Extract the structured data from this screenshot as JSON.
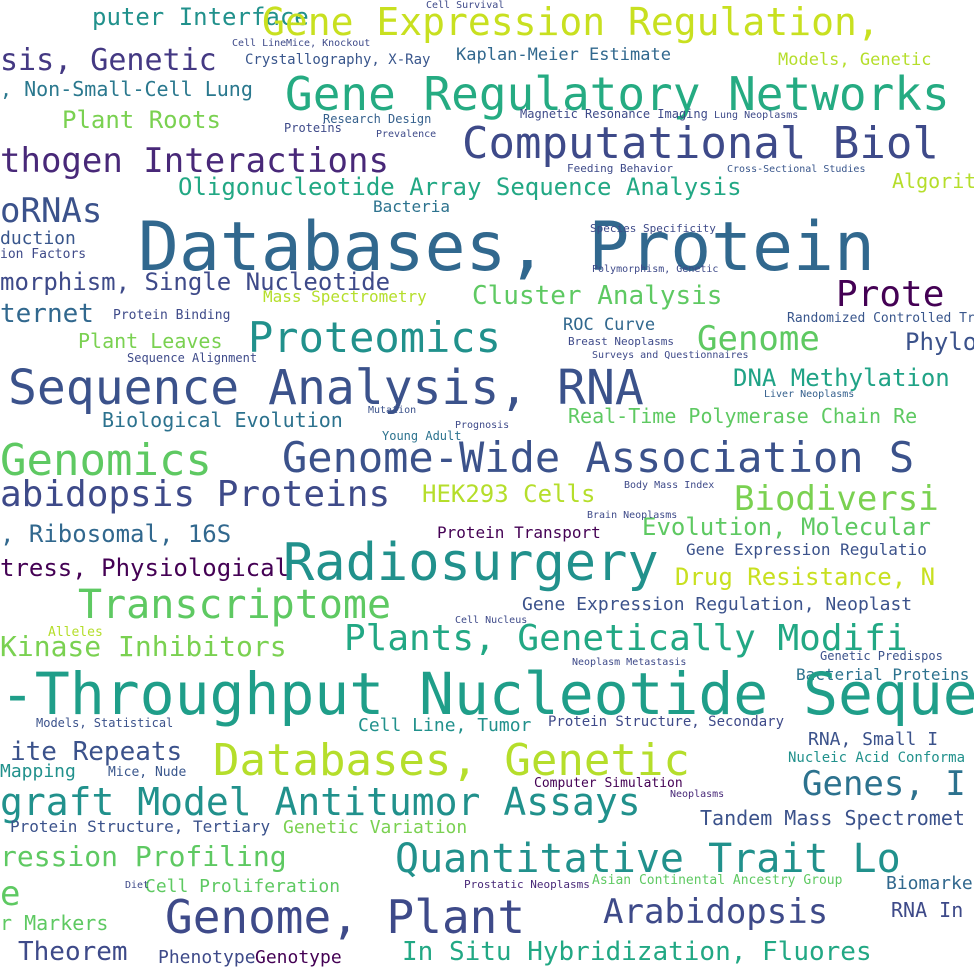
{
  "words": [
    "puter Interface",
    "Gene Expression Regulation,",
    "sis, Genetic",
    "Crystallography, X-Ray",
    "Kaplan-Meier Estimate",
    "Models, Genetic",
    ", Non-Small-Cell Lung",
    "Gene Regulatory Networks",
    "Plant Roots",
    "Computational Biol",
    "thogen Interactions",
    "Magnetic Resonance Imaging",
    "Research Design",
    "Oligonucleotide Array Sequence Analysis",
    "Algorit",
    "oRNAs",
    "Bacteria",
    "Databases, Protein",
    "duction",
    "ion Factors",
    "morphism, Single Nucleotide",
    "Cluster Analysis",
    "Mass Spectrometry",
    "Prote",
    "ternet",
    "Protein Binding",
    "Proteomics",
    "ROC Curve",
    "Genome",
    "Phylo",
    "Plant Leaves",
    "Randomized Controlled Tri",
    "Sequence Analysis, RNA",
    "DNA Methylation",
    "Biological Evolution",
    "Real-Time Polymerase Chain Re",
    "Genomics",
    "Genome-Wide Association S",
    "abidopsis Proteins",
    "HEK293 Cells",
    "Biodiversi",
    ", Ribosomal, 16S",
    "Evolution, Molecular",
    "Protein Transport",
    "Radiosurgery",
    "Gene Expression Regulatio",
    "tress, Physiological",
    "Drug Resistance, N",
    "Transcriptome",
    "Gene Expression Regulation, Neoplast",
    "Plants, Genetically Modifi",
    "Kinase Inhibitors",
    "Alleles",
    "Bacterial Proteins",
    "-Throughput Nucleotide Sequen",
    "Cell Line, Tumor",
    "Protein Structure, Secondary",
    "RNA, Small I",
    "ite Repeats",
    "Databases, Genetic",
    "Mapping",
    "Mice, Nude",
    "Genes, I",
    "Nucleic Acid Conforma",
    "graft Model Antitumor Assays",
    "Computer Simulation",
    "Tandem Mass Spectromet",
    "Protein Structure, Tertiary",
    "Genetic Variation",
    "ression Profiling",
    "Quantitative Trait Lo",
    "Cell Proliferation",
    "Biomarke",
    "Genome, Plant",
    "Arabidopsis",
    "RNA In",
    "Theorem",
    "Phenotype",
    "Genotype",
    "In Situ Hybridization, Fluores",
    "r Markers",
    "e",
    "Asian Continental Ancestry Group",
    "Prostatic Neoplasms",
    "Species Specificity",
    "Feeding Behavior",
    "Cross-Sectional Studies",
    "Young Adult",
    "Prognosis",
    "Liver Neoplasms",
    "Breast Neoplasms",
    "Sequence Alignment",
    "Mutation",
    "Surveys and Questionnaires",
    "Brain Neoplasms",
    "Body Mass Index",
    "Neoplasm Metastasis",
    "Neoplasms",
    "Cell Nucleus",
    "Cell Line",
    "Mice, Knockout",
    "Proteins",
    "Prevalence",
    "Lung Neoplasms",
    "Models, Statistical",
    "Genetic Predispos",
    "Diet",
    "Cell Survival",
    "Polymorphism, Genetic"
  ]
}
